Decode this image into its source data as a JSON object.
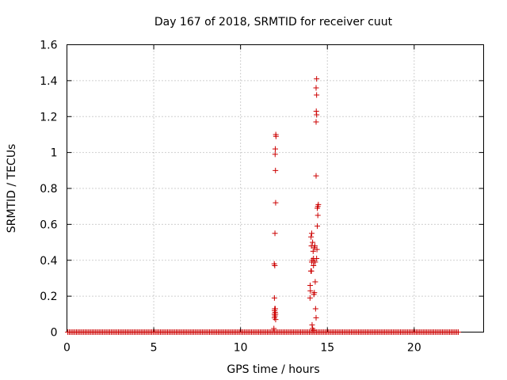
{
  "chart_data": {
    "type": "scatter",
    "title": "Day 167 of 2018, SRMTID for receiver cuut",
    "xlabel": "GPS time / hours",
    "ylabel": "SRMTID / TECUs",
    "xlim": [
      0,
      24
    ],
    "ylim": [
      0,
      1.6
    ],
    "xticks": [
      0,
      5,
      10,
      15,
      20
    ],
    "xtick_labels": [
      "0",
      "5",
      "10",
      "15",
      "20"
    ],
    "yticks": [
      0,
      0.2,
      0.4,
      0.6,
      0.8,
      1.0,
      1.2,
      1.4,
      1.6
    ],
    "ytick_labels": [
      "0",
      "0.2",
      "0.4",
      "0.6",
      "0.8",
      "1",
      "1.2",
      "1.4",
      "1.6"
    ],
    "grid": true,
    "marker": "+",
    "color": "#cc0000",
    "series": [
      {
        "name": "SRMTID",
        "baseline": {
          "y": 0,
          "x_start": 0.05,
          "x_end": 22.6,
          "x_step": 0.0833
        },
        "points": [
          {
            "x": 11.92,
            "y": 0.02
          },
          {
            "x": 11.95,
            "y": 0.08
          },
          {
            "x": 11.95,
            "y": 0.1
          },
          {
            "x": 11.96,
            "y": 0.12
          },
          {
            "x": 11.97,
            "y": 0.13
          },
          {
            "x": 11.98,
            "y": 0.09
          },
          {
            "x": 11.99,
            "y": 0.11
          },
          {
            "x": 11.95,
            "y": 0.19
          },
          {
            "x": 11.94,
            "y": 0.38
          },
          {
            "x": 11.97,
            "y": 0.37
          },
          {
            "x": 11.98,
            "y": 0.55
          },
          {
            "x": 12.02,
            "y": 0.72
          },
          {
            "x": 12.01,
            "y": 0.9
          },
          {
            "x": 11.99,
            "y": 0.99
          },
          {
            "x": 12.0,
            "y": 1.02
          },
          {
            "x": 12.03,
            "y": 1.1
          },
          {
            "x": 12.04,
            "y": 1.09
          },
          {
            "x": 12.0,
            "y": 0.13
          },
          {
            "x": 12.01,
            "y": 0.1
          },
          {
            "x": 12.02,
            "y": 0.07
          },
          {
            "x": 14.0,
            "y": 0.19
          },
          {
            "x": 14.02,
            "y": 0.23
          },
          {
            "x": 14.01,
            "y": 0.26
          },
          {
            "x": 14.05,
            "y": 0.34
          },
          {
            "x": 14.08,
            "y": 0.34
          },
          {
            "x": 14.1,
            "y": 0.39
          },
          {
            "x": 14.12,
            "y": 0.4
          },
          {
            "x": 14.08,
            "y": 0.48
          },
          {
            "x": 14.06,
            "y": 0.53
          },
          {
            "x": 14.1,
            "y": 0.55
          },
          {
            "x": 14.15,
            "y": 0.5
          },
          {
            "x": 14.18,
            "y": 0.45
          },
          {
            "x": 14.2,
            "y": 0.41
          },
          {
            "x": 14.2,
            "y": 0.37
          },
          {
            "x": 14.22,
            "y": 0.39
          },
          {
            "x": 14.25,
            "y": 0.47
          },
          {
            "x": 14.28,
            "y": 0.48
          },
          {
            "x": 14.3,
            "y": 0.39
          },
          {
            "x": 14.22,
            "y": 0.21
          },
          {
            "x": 14.25,
            "y": 0.22
          },
          {
            "x": 14.3,
            "y": 0.28
          },
          {
            "x": 14.12,
            "y": 0.04
          },
          {
            "x": 14.15,
            "y": 0.02
          },
          {
            "x": 14.2,
            "y": 0.01
          },
          {
            "x": 14.32,
            "y": 0.13
          },
          {
            "x": 14.35,
            "y": 0.08
          },
          {
            "x": 14.38,
            "y": 0.41
          },
          {
            "x": 14.4,
            "y": 0.46
          },
          {
            "x": 14.42,
            "y": 0.59
          },
          {
            "x": 14.45,
            "y": 0.65
          },
          {
            "x": 14.42,
            "y": 0.69
          },
          {
            "x": 14.45,
            "y": 0.7
          },
          {
            "x": 14.48,
            "y": 0.71
          },
          {
            "x": 14.35,
            "y": 0.87
          },
          {
            "x": 14.35,
            "y": 1.17
          },
          {
            "x": 14.38,
            "y": 1.21
          },
          {
            "x": 14.36,
            "y": 1.23
          },
          {
            "x": 14.38,
            "y": 1.32
          },
          {
            "x": 14.35,
            "y": 1.36
          },
          {
            "x": 14.38,
            "y": 1.41
          }
        ]
      }
    ]
  }
}
